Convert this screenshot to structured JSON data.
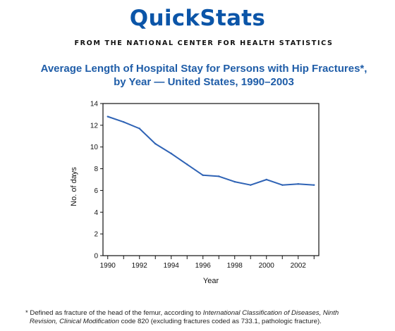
{
  "header": {
    "brand": "QuickStats",
    "source_line": "FROM THE NATIONAL CENTER FOR HEALTH STATISTICS"
  },
  "colors": {
    "brand": "#0b55a8",
    "title": "#1f5da8",
    "line": "#2f63b5"
  },
  "chart_data": {
    "type": "line",
    "title_line1": "Average Length of Hospital Stay for Persons with Hip Fractures*,",
    "title_line2": "by Year — United States, 1990–2003",
    "xlabel": "Year",
    "ylabel": "No. of days",
    "xlim": [
      1989.7,
      2003.3
    ],
    "ylim": [
      0,
      14
    ],
    "x_ticks": [
      1990,
      1991,
      1992,
      1993,
      1994,
      1995,
      1996,
      1997,
      1998,
      1999,
      2000,
      2001,
      2002,
      2003
    ],
    "x_tick_labels": [
      "1990",
      "",
      "1992",
      "",
      "1994",
      "",
      "1996",
      "",
      "1998",
      "",
      "2000",
      "",
      "2002",
      ""
    ],
    "y_ticks": [
      0,
      2,
      4,
      6,
      8,
      10,
      12,
      14
    ],
    "y_tick_labels": [
      "0",
      "2",
      "4",
      "6",
      "8",
      "10",
      "12",
      "14"
    ],
    "grid": false,
    "series": [
      {
        "x": [
          1990,
          1991,
          1992,
          1993,
          1994,
          1995,
          1996,
          1997,
          1998,
          1999,
          2000,
          2001,
          2002,
          2003
        ],
        "values": [
          12.8,
          12.3,
          11.7,
          10.3,
          9.4,
          8.4,
          7.4,
          7.3,
          6.8,
          6.5,
          7.0,
          6.5,
          6.6,
          6.5
        ]
      }
    ]
  },
  "footnote": {
    "part1": "* Defined as fracture of the head of the femur, according to ",
    "italic1": "International Classification of Diseases, Ninth",
    "italic2": "Revision, Clinical Modification",
    "part2": " code 820 (excluding fractures coded as 733.1, pathologic fracture)."
  }
}
